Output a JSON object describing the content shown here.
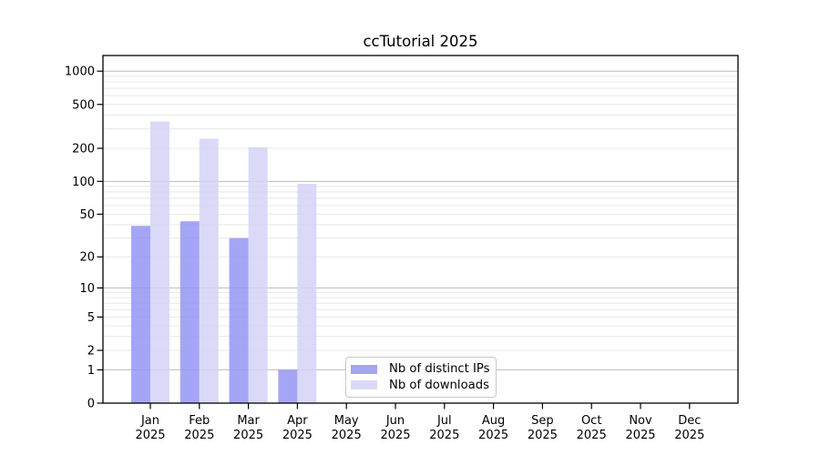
{
  "page": {
    "background": "#ffffff"
  },
  "chart_data": {
    "type": "bar",
    "title": "ccTutorial 2025",
    "year": "2025",
    "months": [
      "Jan",
      "Feb",
      "Mar",
      "Apr",
      "May",
      "Jun",
      "Jul",
      "Aug",
      "Sep",
      "Oct",
      "Nov",
      "Dec"
    ],
    "categories": [
      "Jan 2025",
      "Feb 2025",
      "Mar 2025",
      "Apr 2025",
      "May 2025",
      "Jun 2025",
      "Jul 2025",
      "Aug 2025",
      "Sep 2025",
      "Oct 2025",
      "Nov 2025",
      "Dec 2025"
    ],
    "series": [
      {
        "name": "Nb of distinct IPs",
        "color": "#9595f4",
        "values": [
          39,
          43,
          30,
          1,
          0,
          0,
          0,
          0,
          0,
          0,
          0,
          0
        ]
      },
      {
        "name": "Nb of downloads",
        "color": "#d3d3f7",
        "values": [
          350,
          245,
          205,
          95,
          0,
          0,
          0,
          0,
          0,
          0,
          0,
          0
        ]
      }
    ],
    "bar_opacity": 0.85,
    "xlabel": "",
    "ylabel": "",
    "yscale": "symlog",
    "ylim": [
      0,
      1340
    ],
    "yticks": [
      0,
      1,
      2,
      5,
      10,
      20,
      50,
      100,
      200,
      500,
      1000
    ],
    "ytick_labels": [
      "0",
      "1",
      "2",
      "5",
      "10",
      "20",
      "50",
      "100",
      "200",
      "500",
      "1000"
    ],
    "grid": "horizontal",
    "grid_major_color": "#bcbcbc",
    "grid_minor_color": "#e8e8e8",
    "axis_color": "#000000",
    "legend_position": "inside-lower-center"
  }
}
